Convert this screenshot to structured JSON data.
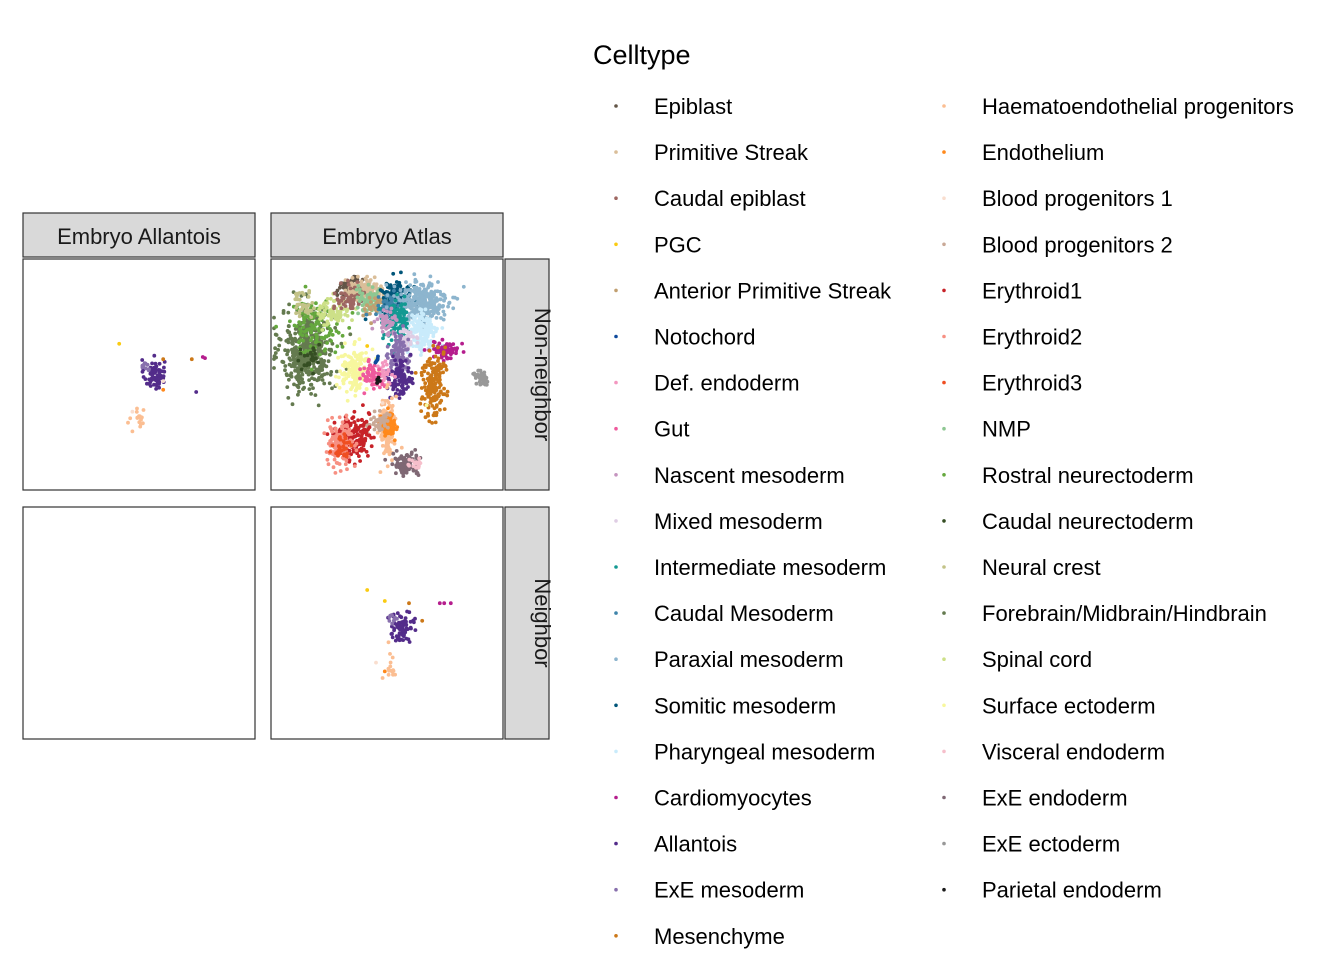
{
  "chart_data": {
    "type": "scatter",
    "title": "",
    "xlabel": "",
    "ylabel": "",
    "facets": {
      "columns": [
        "Embryo Allantois",
        "Embryo Atlas"
      ],
      "rows": [
        "Non-neighbor",
        "Neighbor"
      ]
    },
    "xlim": [
      0,
      100
    ],
    "ylim": [
      0,
      100
    ],
    "axes_visible": false,
    "grid": false,
    "legend": {
      "title": "Celltype",
      "placement": "right",
      "columns": 2,
      "entries": [
        {
          "name": "Epiblast",
          "color": "#635547"
        },
        {
          "name": "Primitive Streak",
          "color": "#DABE99"
        },
        {
          "name": "Caudal epiblast",
          "color": "#9E6762"
        },
        {
          "name": "PGC",
          "color": "#FACB12"
        },
        {
          "name": "Anterior Primitive Streak",
          "color": "#C19F70"
        },
        {
          "name": "Notochord",
          "color": "#0F4A9C"
        },
        {
          "name": "Def. endoderm",
          "color": "#F397C0"
        },
        {
          "name": "Gut",
          "color": "#EF5A9D"
        },
        {
          "name": "Nascent mesoderm",
          "color": "#C594BF"
        },
        {
          "name": "Mixed mesoderm",
          "color": "#DFCDE4"
        },
        {
          "name": "Intermediate mesoderm",
          "color": "#139992"
        },
        {
          "name": "Caudal Mesoderm",
          "color": "#3F84AA"
        },
        {
          "name": "Paraxial mesoderm",
          "color": "#8DB5CE"
        },
        {
          "name": "Somitic mesoderm",
          "color": "#005579"
        },
        {
          "name": "Pharyngeal mesoderm",
          "color": "#C9EBFB"
        },
        {
          "name": "Cardiomyocytes",
          "color": "#B51D8D"
        },
        {
          "name": "Allantois",
          "color": "#532C8A"
        },
        {
          "name": "ExE mesoderm",
          "color": "#8870AD"
        },
        {
          "name": "Mesenchyme",
          "color": "#CC7818"
        },
        {
          "name": "Haematoendothelial progenitors",
          "color": "#FBBE92"
        },
        {
          "name": "Endothelium",
          "color": "#FF891C"
        },
        {
          "name": "Blood progenitors 1",
          "color": "#F9DECF"
        },
        {
          "name": "Blood progenitors 2",
          "color": "#C9A997"
        },
        {
          "name": "Erythroid1",
          "color": "#C72228"
        },
        {
          "name": "Erythroid2",
          "color": "#F79083"
        },
        {
          "name": "Erythroid3",
          "color": "#EF4E22"
        },
        {
          "name": "NMP",
          "color": "#8EC792"
        },
        {
          "name": "Rostral neurectoderm",
          "color": "#65A83E"
        },
        {
          "name": "Caudal neurectoderm",
          "color": "#354E23"
        },
        {
          "name": "Neural crest",
          "color": "#C3C388"
        },
        {
          "name": "Forebrain/Midbrain/Hindbrain",
          "color": "#647A4F"
        },
        {
          "name": "Spinal cord",
          "color": "#CDE088"
        },
        {
          "name": "Surface ectoderm",
          "color": "#F7F79E"
        },
        {
          "name": "Visceral endoderm",
          "color": "#F6BFCB"
        },
        {
          "name": "ExE endoderm",
          "color": "#7F6874"
        },
        {
          "name": "ExE ectoderm",
          "color": "#989898"
        },
        {
          "name": "Parietal endoderm",
          "color": "#1A1A1A"
        }
      ]
    },
    "panels": [
      {
        "column": "Embryo Allantois",
        "row": "Non-neighbor",
        "clusters": [
          {
            "celltype": "Allantois",
            "cx": 57,
            "cy": 50,
            "sx": 2.3,
            "sy": 3.4,
            "n": 70
          },
          {
            "celltype": "ExE mesoderm",
            "cx": 53,
            "cy": 54,
            "sx": 1.2,
            "sy": 1.5,
            "n": 10
          },
          {
            "celltype": "Haematoendothelial progenitors",
            "cx": 50.5,
            "cy": 30,
            "sx": 1.2,
            "sy": 3.4,
            "n": 14
          }
        ],
        "points": [
          {
            "celltype": "PGC",
            "x": 41,
            "y": 64
          },
          {
            "celltype": "Mesenchyme",
            "x": 61,
            "y": 57
          },
          {
            "celltype": "Mesenchyme",
            "x": 74,
            "y": 57
          },
          {
            "celltype": "Cardiomyocytes",
            "x": 79,
            "y": 58
          },
          {
            "celltype": "Cardiomyocytes",
            "x": 80,
            "y": 57.5
          },
          {
            "celltype": "Allantois",
            "x": 76,
            "y": 42
          },
          {
            "celltype": "Blood progenitors 1",
            "x": 61,
            "y": 47
          },
          {
            "celltype": "Endothelium",
            "x": 61,
            "y": 43
          },
          {
            "celltype": "Haematoendothelial progenitors",
            "x": 45,
            "y": 28
          },
          {
            "celltype": "Haematoendothelial progenitors",
            "x": 47,
            "y": 24
          },
          {
            "celltype": "Haematoendothelial progenitors",
            "x": 46,
            "y": 30
          },
          {
            "celltype": "Blood progenitors 1",
            "x": 47,
            "y": 33
          }
        ]
      },
      {
        "column": "Embryo Atlas",
        "row": "Non-neighbor",
        "clusters": [
          {
            "celltype": "Forebrain/Midbrain/Hindbrain",
            "cx": 14,
            "cy": 61,
            "sx": 6,
            "sy": 9.5,
            "n": 420
          },
          {
            "celltype": "Rostral neurectoderm",
            "cx": 17,
            "cy": 72,
            "sx": 6,
            "sy": 6,
            "n": 120
          },
          {
            "celltype": "Caudal neurectoderm",
            "cx": 15,
            "cy": 56,
            "sx": 3,
            "sy": 3,
            "n": 25
          },
          {
            "celltype": "Spinal cord",
            "cx": 26,
            "cy": 79,
            "sx": 3.5,
            "sy": 3.5,
            "n": 80
          },
          {
            "celltype": "Neural crest",
            "cx": 12,
            "cy": 82,
            "sx": 3,
            "sy": 3,
            "n": 40
          },
          {
            "celltype": "Surface ectoderm",
            "cx": 36,
            "cy": 52,
            "sx": 4,
            "sy": 5,
            "n": 160
          },
          {
            "celltype": "Epiblast",
            "cx": 33,
            "cy": 89,
            "sx": 3,
            "sy": 2.4,
            "n": 90
          },
          {
            "celltype": "Primitive Streak",
            "cx": 40,
            "cy": 88,
            "sx": 4,
            "sy": 3,
            "n": 160
          },
          {
            "celltype": "Caudal epiblast",
            "cx": 33,
            "cy": 85,
            "sx": 3.5,
            "sy": 3,
            "n": 50
          },
          {
            "celltype": "NMP",
            "cx": 42,
            "cy": 84,
            "sx": 3,
            "sy": 3,
            "n": 60
          },
          {
            "celltype": "Anterior Primitive Streak",
            "cx": 44,
            "cy": 81,
            "sx": 2.5,
            "sy": 2.5,
            "n": 30
          },
          {
            "celltype": "Somitic mesoderm",
            "cx": 54,
            "cy": 85,
            "sx": 3.5,
            "sy": 3.5,
            "n": 160
          },
          {
            "celltype": "Caudal Mesoderm",
            "cx": 51,
            "cy": 80,
            "sx": 2.5,
            "sy": 3,
            "n": 60
          },
          {
            "celltype": "Paraxial mesoderm",
            "cx": 66,
            "cy": 83,
            "sx": 6,
            "sy": 5,
            "n": 280
          },
          {
            "celltype": "Pharyngeal mesoderm",
            "cx": 66,
            "cy": 69,
            "sx": 3.5,
            "sy": 5,
            "n": 150
          },
          {
            "celltype": "Intermediate mesoderm",
            "cx": 55,
            "cy": 74,
            "sx": 3,
            "sy": 4.5,
            "n": 120
          },
          {
            "celltype": "Nascent mesoderm",
            "cx": 50,
            "cy": 74,
            "sx": 2.2,
            "sy": 3,
            "n": 50
          },
          {
            "celltype": "Mixed mesoderm",
            "cx": 58,
            "cy": 66,
            "sx": 2.5,
            "sy": 2.5,
            "n": 40
          },
          {
            "celltype": "ExE mesoderm",
            "cx": 56,
            "cy": 58,
            "sx": 2.5,
            "sy": 5,
            "n": 100
          },
          {
            "celltype": "Allantois",
            "cx": 56,
            "cy": 48,
            "sx": 2.5,
            "sy": 4,
            "n": 100
          },
          {
            "celltype": "Def. endoderm",
            "cx": 48,
            "cy": 50,
            "sx": 1.8,
            "sy": 2.5,
            "n": 30
          },
          {
            "celltype": "Gut",
            "cx": 43,
            "cy": 50,
            "sx": 2.5,
            "sy": 3.5,
            "n": 60
          },
          {
            "celltype": "Notochord",
            "cx": 46,
            "cy": 57,
            "sx": 0.8,
            "sy": 0.8,
            "n": 5
          },
          {
            "celltype": "Cardiomyocytes",
            "cx": 77,
            "cy": 61,
            "sx": 3,
            "sy": 2,
            "n": 70
          },
          {
            "celltype": "Mesenchyme",
            "cx": 71,
            "cy": 46,
            "sx": 2.5,
            "sy": 8,
            "n": 180
          },
          {
            "celltype": "Haematoendothelial progenitors",
            "cx": 50,
            "cy": 26,
            "sx": 1.8,
            "sy": 7,
            "n": 130
          },
          {
            "celltype": "Endothelium",
            "cx": 51,
            "cy": 27,
            "sx": 1.8,
            "sy": 3,
            "n": 70
          },
          {
            "celltype": "Blood progenitors 2",
            "cx": 46,
            "cy": 28,
            "sx": 2.5,
            "sy": 2.5,
            "n": 40
          },
          {
            "celltype": "Erythroid1",
            "cx": 34,
            "cy": 21,
            "sx": 4,
            "sy": 5,
            "n": 180
          },
          {
            "celltype": "Erythroid2",
            "cx": 29,
            "cy": 19,
            "sx": 3,
            "sy": 5,
            "n": 130
          },
          {
            "celltype": "Erythroid3",
            "cx": 30,
            "cy": 17,
            "sx": 2,
            "sy": 2.5,
            "n": 30
          },
          {
            "celltype": "ExE endoderm",
            "cx": 59,
            "cy": 9,
            "sx": 3.5,
            "sy": 2.5,
            "n": 100
          },
          {
            "celltype": "Visceral endoderm",
            "cx": 63,
            "cy": 9,
            "sx": 1.5,
            "sy": 1.5,
            "n": 15
          },
          {
            "celltype": "ExE ectoderm",
            "cx": 93,
            "cy": 49,
            "sx": 1.8,
            "sy": 1.5,
            "n": 50
          },
          {
            "celltype": "Parietal endoderm",
            "cx": 46,
            "cy": 47,
            "sx": 0.6,
            "sy": 0.6,
            "n": 4
          }
        ],
        "points": [
          {
            "celltype": "PGC",
            "x": 41,
            "y": 63
          },
          {
            "celltype": "Blood progenitors 1",
            "x": 48,
            "y": 37
          },
          {
            "celltype": "Surface ectoderm",
            "x": 68,
            "y": 36
          }
        ]
      },
      {
        "column": "Embryo Allantois",
        "row": "Neighbor",
        "clusters": [],
        "points": []
      },
      {
        "column": "Embryo Atlas",
        "row": "Neighbor",
        "clusters": [
          {
            "celltype": "Allantois",
            "cx": 57,
            "cy": 48,
            "sx": 2.6,
            "sy": 3.2,
            "n": 70
          },
          {
            "celltype": "ExE mesoderm",
            "cx": 52.5,
            "cy": 52,
            "sx": 1.2,
            "sy": 1.5,
            "n": 10
          },
          {
            "celltype": "Haematoendothelial progenitors",
            "cx": 51,
            "cy": 31,
            "sx": 1.2,
            "sy": 4,
            "n": 14
          }
        ],
        "points": [
          {
            "celltype": "PGC",
            "x": 41,
            "y": 65
          },
          {
            "celltype": "PGC",
            "x": 49,
            "y": 60
          },
          {
            "celltype": "Mesenchyme",
            "x": 60,
            "y": 59
          },
          {
            "celltype": "Mesenchyme",
            "x": 66,
            "y": 51
          },
          {
            "celltype": "Cardiomyocytes",
            "x": 74,
            "y": 59
          },
          {
            "celltype": "Cardiomyocytes",
            "x": 76,
            "y": 59
          },
          {
            "celltype": "Cardiomyocytes",
            "x": 79,
            "y": 59
          },
          {
            "celltype": "Allantois",
            "x": 54,
            "y": 42
          },
          {
            "celltype": "Blood progenitors 1",
            "x": 45,
            "y": 32
          },
          {
            "celltype": "Endothelium",
            "x": 49,
            "y": 28
          },
          {
            "celltype": "Haematoendothelial progenitors",
            "x": 48,
            "y": 25
          }
        ]
      }
    ]
  }
}
